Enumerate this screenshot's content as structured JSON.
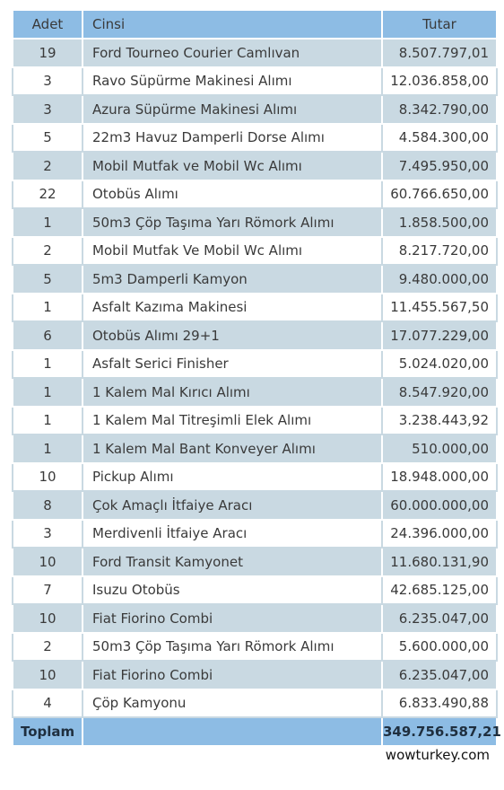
{
  "header": {
    "adet": "Adet",
    "cinsi": "Cinsi",
    "tutar": "Tutar"
  },
  "rows": [
    {
      "adet": "19",
      "cinsi": "Ford Tourneo Courier Camlıvan",
      "tutar": "8.507.797,01"
    },
    {
      "adet": "3",
      "cinsi": "Ravo Süpürme Makinesi Alımı",
      "tutar": "12.036.858,00"
    },
    {
      "adet": "3",
      "cinsi": "Azura Süpürme Makinesi Alımı",
      "tutar": "8.342.790,00"
    },
    {
      "adet": "5",
      "cinsi": "22m3 Havuz Damperli Dorse Alımı",
      "tutar": "4.584.300,00"
    },
    {
      "adet": "2",
      "cinsi": "Mobil Mutfak ve Mobil Wc Alımı",
      "tutar": "7.495.950,00"
    },
    {
      "adet": "22",
      "cinsi": "Otobüs Alımı",
      "tutar": "60.766.650,00"
    },
    {
      "adet": "1",
      "cinsi": "50m3 Çöp Taşıma Yarı Römork Alımı",
      "tutar": "1.858.500,00"
    },
    {
      "adet": "2",
      "cinsi": "Mobil Mutfak Ve Mobil Wc Alımı",
      "tutar": "8.217.720,00"
    },
    {
      "adet": "5",
      "cinsi": "5m3 Damperli Kamyon",
      "tutar": "9.480.000,00"
    },
    {
      "adet": "1",
      "cinsi": "Asfalt Kazıma Makinesi",
      "tutar": "11.455.567,50"
    },
    {
      "adet": "6",
      "cinsi": "Otobüs Alımı 29+1",
      "tutar": "17.077.229,00"
    },
    {
      "adet": "1",
      "cinsi": "Asfalt Serici Finisher",
      "tutar": "5.024.020,00"
    },
    {
      "adet": "1",
      "cinsi": "1 Kalem Mal Kırıcı Alımı",
      "tutar": "8.547.920,00"
    },
    {
      "adet": "1",
      "cinsi": "1 Kalem Mal Titreşimli Elek Alımı",
      "tutar": "3.238.443,92"
    },
    {
      "adet": "1",
      "cinsi": "1 Kalem Mal Bant Konveyer Alımı",
      "tutar": "510.000,00"
    },
    {
      "adet": "10",
      "cinsi": "Pickup Alımı",
      "tutar": "18.948.000,00"
    },
    {
      "adet": "8",
      "cinsi": "Çok Amaçlı İtfaiye Aracı",
      "tutar": "60.000.000,00"
    },
    {
      "adet": "3",
      "cinsi": "Merdivenli İtfaiye Aracı",
      "tutar": "24.396.000,00"
    },
    {
      "adet": "10",
      "cinsi": "Ford Transit Kamyonet",
      "tutar": "11.680.131,90"
    },
    {
      "adet": "7",
      "cinsi": "Isuzu Otobüs",
      "tutar": "42.685.125,00"
    },
    {
      "adet": "10",
      "cinsi": "Fiat Fiorino Combi",
      "tutar": "6.235.047,00"
    },
    {
      "adet": "2",
      "cinsi": "50m3 Çöp Taşıma Yarı Römork Alımı",
      "tutar": "5.600.000,00"
    },
    {
      "adet": "10",
      "cinsi": "Fiat Fiorino Combi",
      "tutar": "6.235.047,00"
    },
    {
      "adet": "4",
      "cinsi": "Çöp Kamyonu",
      "tutar": "6.833.490,88"
    }
  ],
  "footer": {
    "label": "Toplam",
    "total": "349.756.587,21"
  },
  "watermark": "wowturkey.com"
}
